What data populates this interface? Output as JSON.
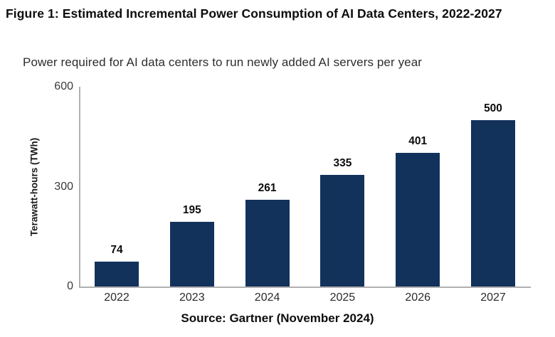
{
  "page": {
    "figure_title": "Figure 1: Estimated Incremental Power Consumption of AI Data Centers, 2022-2027",
    "source": "Source: Gartner (November 2024)"
  },
  "chart_data": {
    "type": "bar",
    "title": "Power required for AI data centers to run newly added AI servers per year",
    "categories": [
      "2022",
      "2023",
      "2024",
      "2025",
      "2026",
      "2027"
    ],
    "values": [
      74,
      195,
      261,
      335,
      401,
      500
    ],
    "xlabel": "",
    "ylabel": "Terawatt-hours (TWh)",
    "ylim": [
      0,
      600
    ],
    "yticks": [
      0,
      300,
      600
    ],
    "grid": false,
    "legend": false,
    "data_labels": true,
    "bar_color": "#12325c",
    "axis_color": "#b0b0b0"
  }
}
